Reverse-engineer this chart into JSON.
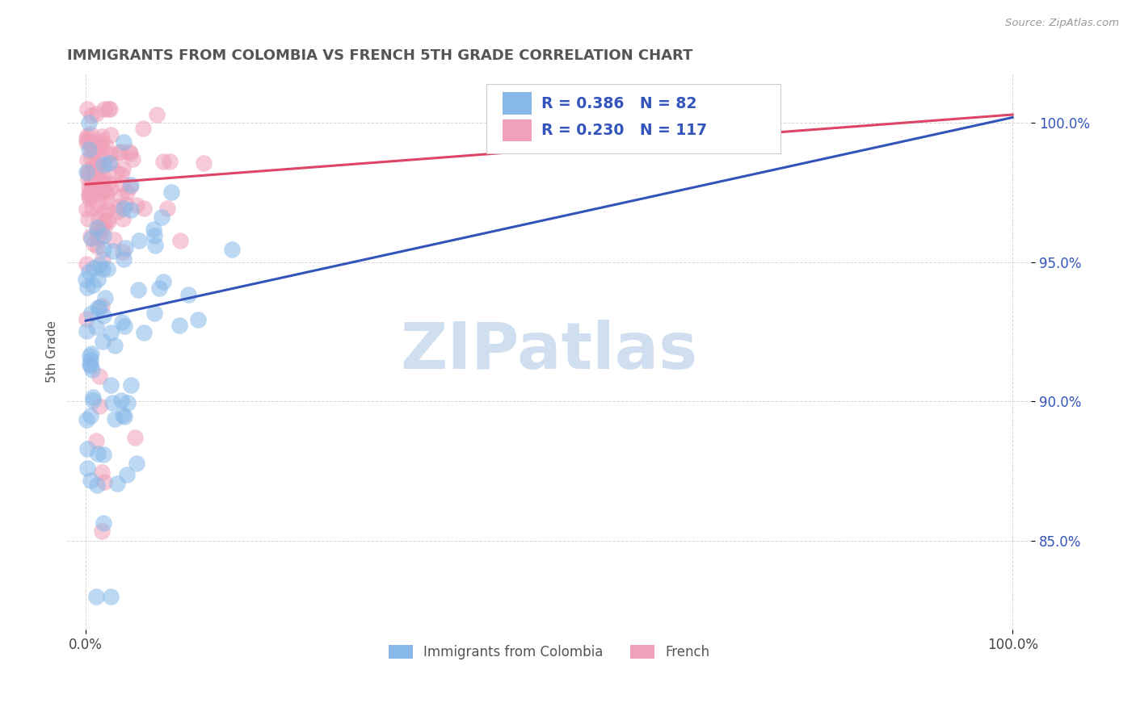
{
  "title": "IMMIGRANTS FROM COLOMBIA VS FRENCH 5TH GRADE CORRELATION CHART",
  "source_text": "Source: ZipAtlas.com",
  "ylabel": "5th Grade",
  "xlim": [
    -0.02,
    1.02
  ],
  "ylim": [
    0.818,
    1.018
  ],
  "x_tick_labels": [
    "0.0%",
    "100.0%"
  ],
  "x_tick_positions": [
    0.0,
    1.0
  ],
  "y_tick_labels": [
    "85.0%",
    "90.0%",
    "95.0%",
    "100.0%"
  ],
  "y_tick_positions": [
    0.85,
    0.9,
    0.95,
    1.0
  ],
  "legend_labels": [
    "Immigrants from Colombia",
    "French"
  ],
  "legend_R": [
    0.386,
    0.23
  ],
  "legend_N": [
    82,
    117
  ],
  "blue_color": "#87b8e8",
  "pink_color": "#f0a0b8",
  "blue_line_color": "#3355bb",
  "pink_line_color": "#dd4466",
  "watermark_text": "ZIPatlas",
  "watermark_color": "#d0dff0",
  "grid_color": "#bbbbbb",
  "background_color": "#ffffff",
  "blue_trend": [
    0.929,
    1.002
  ],
  "pink_trend": [
    0.978,
    1.003
  ]
}
